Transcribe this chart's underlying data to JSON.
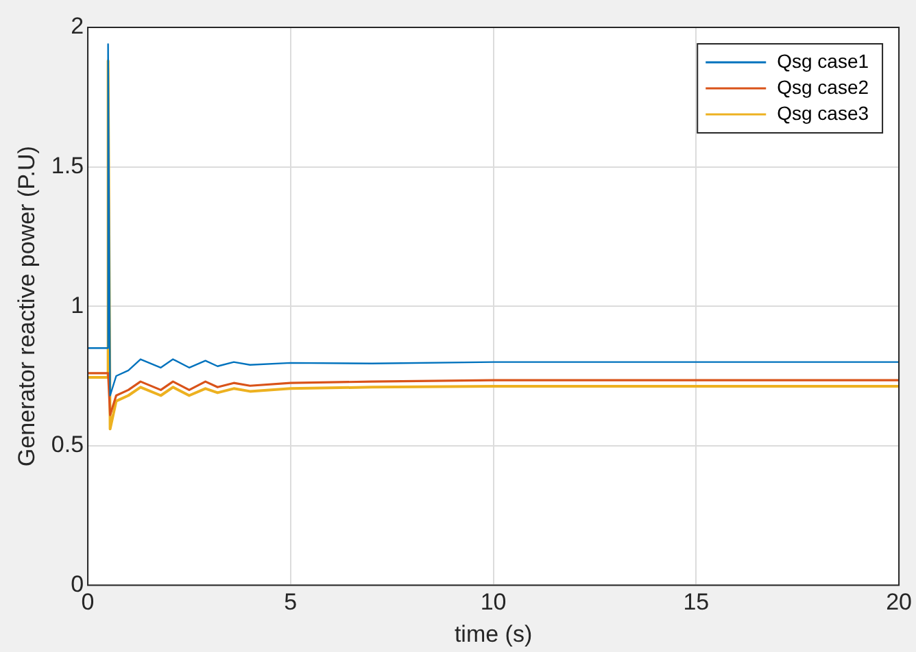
{
  "chart_data": {
    "type": "line",
    "xlabel": "time (s)",
    "ylabel": "Generator reactive power (P.U)",
    "xlim": [
      0,
      20
    ],
    "xticks": [
      0,
      5,
      10,
      15,
      20
    ],
    "ylim": [
      0,
      2
    ],
    "yticks": [
      0,
      0.5,
      1,
      1.5,
      2
    ],
    "grid": true,
    "legend": "top right",
    "line_style": "solid",
    "marker": "none",
    "series": [
      {
        "name": "Qsg case1",
        "color": "#0072bd",
        "x": [
          0,
          0.5,
          0.5,
          0.55,
          0.7,
          1.0,
          1.3,
          1.8,
          2.1,
          2.5,
          2.9,
          3.2,
          3.6,
          4.0,
          5,
          7,
          10,
          20
        ],
        "values": [
          0.85,
          0.85,
          1.94,
          0.68,
          0.75,
          0.77,
          0.81,
          0.78,
          0.81,
          0.78,
          0.805,
          0.785,
          0.8,
          0.79,
          0.797,
          0.795,
          0.8,
          0.8
        ]
      },
      {
        "name": "Qsg case2",
        "color": "#d95319",
        "x": [
          0,
          0.5,
          0.55,
          0.7,
          1.0,
          1.3,
          1.8,
          2.1,
          2.5,
          2.9,
          3.2,
          3.6,
          4.0,
          5,
          7,
          10,
          20
        ],
        "values": [
          0.76,
          0.76,
          0.61,
          0.68,
          0.7,
          0.73,
          0.7,
          0.73,
          0.7,
          0.73,
          0.71,
          0.725,
          0.715,
          0.725,
          0.73,
          0.735,
          0.735
        ]
      },
      {
        "name": "Qsg case3",
        "color": "#edb120",
        "x": [
          0,
          0.5,
          0.5,
          0.55,
          0.7,
          1.0,
          1.3,
          1.8,
          2.1,
          2.5,
          2.9,
          3.2,
          3.6,
          4.0,
          5,
          7,
          10,
          20
        ],
        "values": [
          0.745,
          0.745,
          1.88,
          0.56,
          0.66,
          0.68,
          0.71,
          0.68,
          0.71,
          0.68,
          0.705,
          0.69,
          0.705,
          0.695,
          0.705,
          0.71,
          0.713,
          0.713
        ]
      }
    ]
  }
}
